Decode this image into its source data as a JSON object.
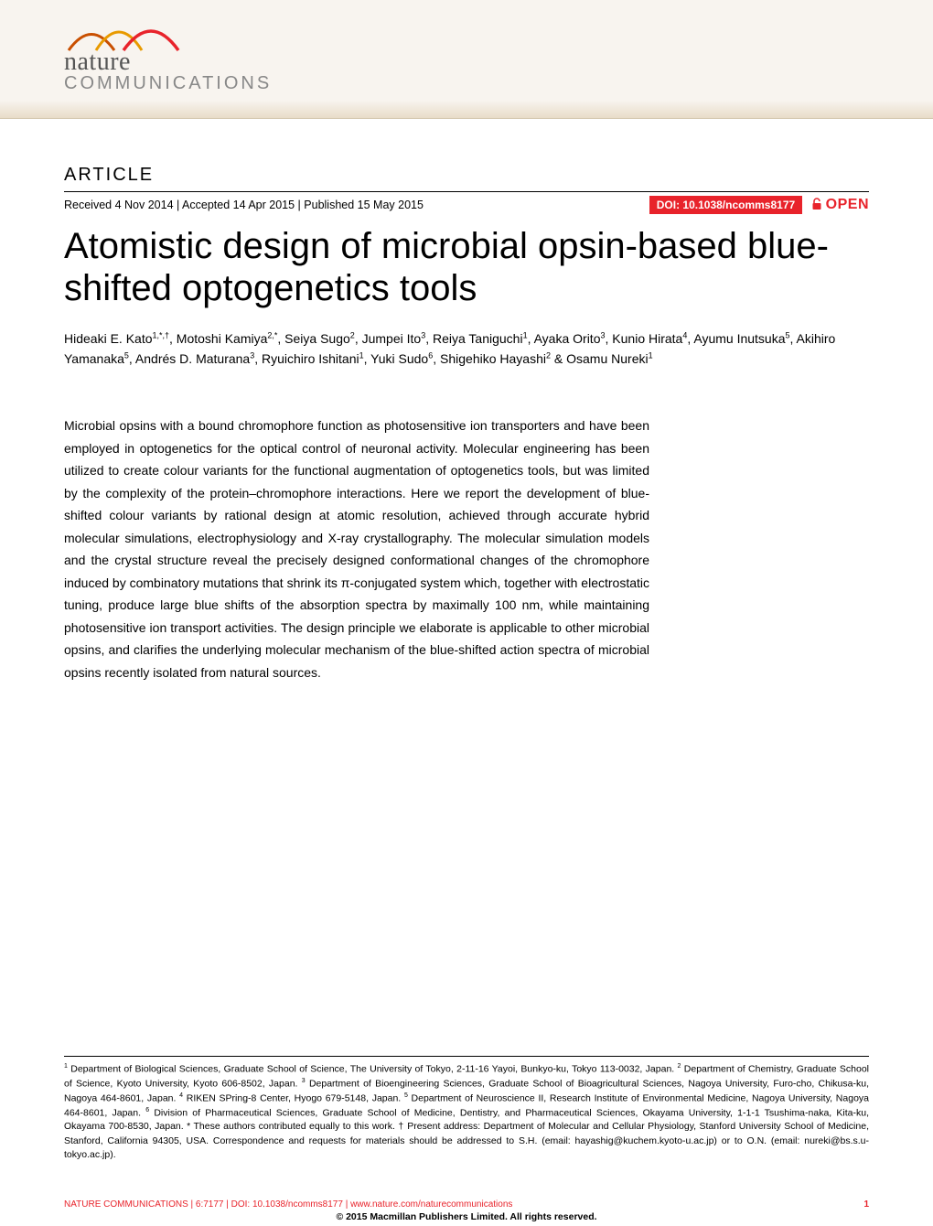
{
  "journal": {
    "logo_nature": "nature",
    "logo_comm": "COMMUNICATIONS",
    "arc_colors": [
      "#c94f00",
      "#e89a00",
      "#e8232b"
    ]
  },
  "article_label": "ARTICLE",
  "meta": {
    "received": "Received 4 Nov 2014",
    "accepted": "Accepted 14 Apr 2015",
    "published": "Published 15 May 2015",
    "doi": "DOI: 10.1038/ncomms8177",
    "open": "OPEN"
  },
  "title": "Atomistic design of microbial opsin-based blue-shifted optogenetics tools",
  "authors_html": "Hideaki E. Kato<sup>1,*,†</sup>, Motoshi Kamiya<sup>2,*</sup>, Seiya Sugo<sup>2</sup>, Jumpei Ito<sup>3</sup>, Reiya Taniguchi<sup>1</sup>, Ayaka Orito<sup>3</sup>, Kunio Hirata<sup>4</sup>, Ayumu Inutsuka<sup>5</sup>, Akihiro Yamanaka<sup>5</sup>, Andrés D. Maturana<sup>3</sup>, Ryuichiro Ishitani<sup>1</sup>, Yuki Sudo<sup>6</sup>, Shigehiko Hayashi<sup>2</sup> & Osamu Nureki<sup>1</sup>",
  "abstract": "Microbial opsins with a bound chromophore function as photosensitive ion transporters and have been employed in optogenetics for the optical control of neuronal activity. Molecular engineering has been utilized to create colour variants for the functional augmentation of optogenetics tools, but was limited by the complexity of the protein–chromophore interactions. Here we report the development of blue-shifted colour variants by rational design at atomic resolution, achieved through accurate hybrid molecular simulations, electrophysiology and X-ray crystallography. The molecular simulation models and the crystal structure reveal the precisely designed conformational changes of the chromophore induced by combinatory mutations that shrink its π-conjugated system which, together with electrostatic tuning, produce large blue shifts of the absorption spectra by maximally 100 nm, while maintaining photosensitive ion transport activities. The design principle we elaborate is applicable to other microbial opsins, and clarifies the underlying molecular mechanism of the blue-shifted action spectra of microbial opsins recently isolated from natural sources.",
  "affiliations_html": "<sup>1</sup> Department of Biological Sciences, Graduate School of Science, The University of Tokyo, 2-11-16 Yayoi, Bunkyo-ku, Tokyo 113-0032, Japan. <sup>2</sup> Department of Chemistry, Graduate School of Science, Kyoto University, Kyoto 606-8502, Japan. <sup>3</sup> Department of Bioengineering Sciences, Graduate School of Bioagricultural Sciences, Nagoya University, Furo-cho, Chikusa-ku, Nagoya 464-8601, Japan. <sup>4</sup> RIKEN SPring-8 Center, Hyogo 679-5148, Japan. <sup>5</sup> Department of Neuroscience II, Research Institute of Environmental Medicine, Nagoya University, Nagoya 464-8601, Japan. <sup>6</sup> Division of Pharmaceutical Sciences, Graduate School of Medicine, Dentistry, and Pharmaceutical Sciences, Okayama University, 1-1-1 Tsushima-naka, Kita-ku, Okayama 700-8530, Japan. * These authors contributed equally to this work. † Present address: Department of Molecular and Cellular Physiology, Stanford University School of Medicine, Stanford, California 94305, USA. Correspondence and requests for materials should be addressed to S.H. (email: hayashig@kuchem.kyoto-u.ac.jp) or to O.N. (email: nureki@bs.s.u-tokyo.ac.jp).",
  "footer": {
    "citation": "NATURE COMMUNICATIONS | 6:7177 | DOI: 10.1038/ncomms8177 | www.nature.com/naturecommunications",
    "page": "1",
    "copyright": "© 2015 Macmillan Publishers Limited. All rights reserved."
  },
  "colors": {
    "accent": "#e8232b",
    "banner_bg_top": "#f8f4ef",
    "banner_bg_bottom": "#e8dcc8",
    "text": "#000000"
  }
}
